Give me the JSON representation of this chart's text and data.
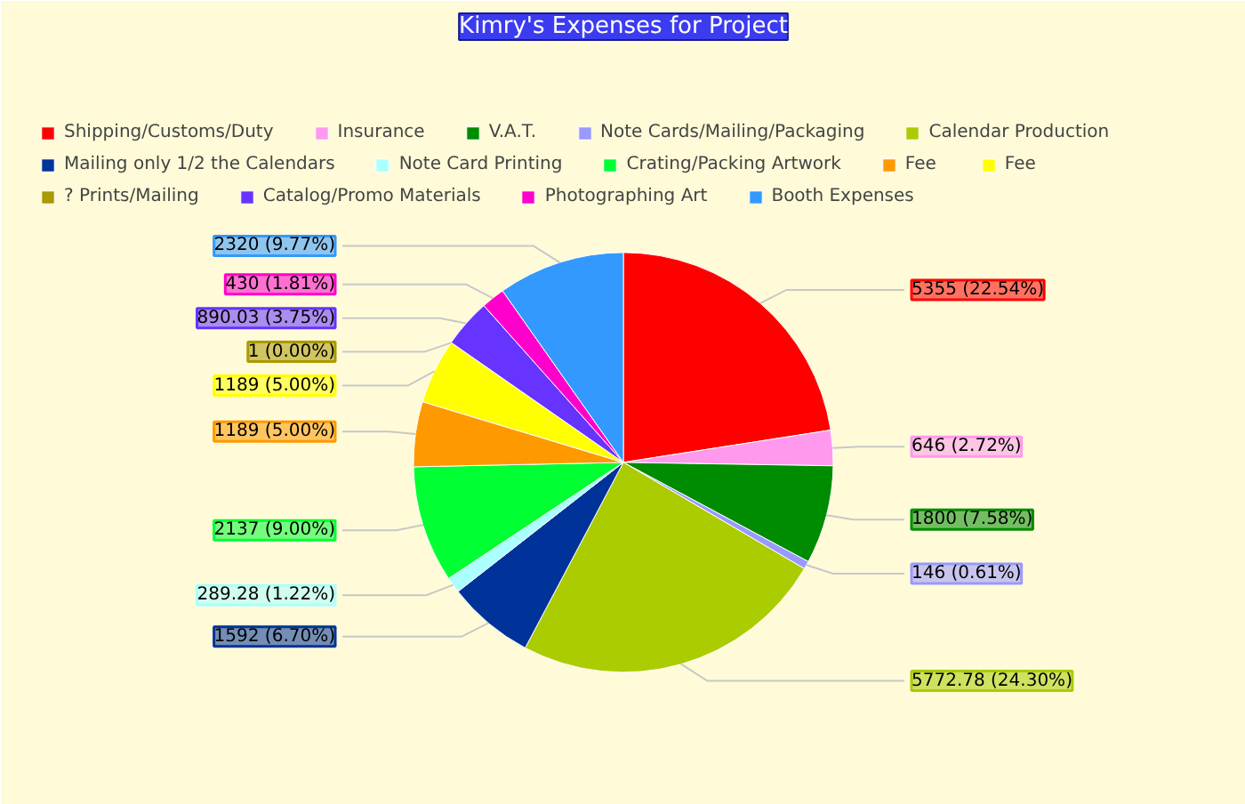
{
  "chart_data": {
    "type": "pie",
    "title": "Kimry's Expenses for Project",
    "categories": [
      "Shipping/Customs/Duty",
      "Insurance",
      "V.A.T.",
      "Note Cards/Mailing/Packaging",
      "Calendar Production",
      "Mailing only 1/2 the Calendars",
      "Note Card Printing",
      "Crating/Packing Artwork",
      "Fee",
      "Fee",
      "? Prints/Mailing",
      "Catalog/Promo Materials",
      "Photographing Art",
      "Booth Expenses"
    ],
    "values": [
      5355,
      646,
      1800,
      146,
      5772.78,
      1592,
      289.28,
      2137,
      1189,
      1189,
      1,
      890.03,
      430,
      2320
    ],
    "colors": [
      "#ff0000",
      "#ff99ee",
      "#008c00",
      "#9999ff",
      "#aacc00",
      "#003399",
      "#aaffff",
      "#00ff33",
      "#ff9900",
      "#ffff00",
      "#aa9900",
      "#6633ff",
      "#ff00cc",
      "#3399ff"
    ],
    "value_labels": [
      "5355 (22.54%)",
      "646 (2.72%)",
      "1800 (7.58%)",
      "146 (0.61%)",
      "5772.78 (24.30%)",
      "1592 (6.70%)",
      "289.28 (1.22%)",
      "2137 (9.00%)",
      "1189 (5.00%)",
      "1189 (5.00%)",
      "1 (0.00%)",
      "890.03 (3.75%)",
      "430 (1.81%)",
      "2320 (9.77%)"
    ],
    "legend": "top"
  }
}
